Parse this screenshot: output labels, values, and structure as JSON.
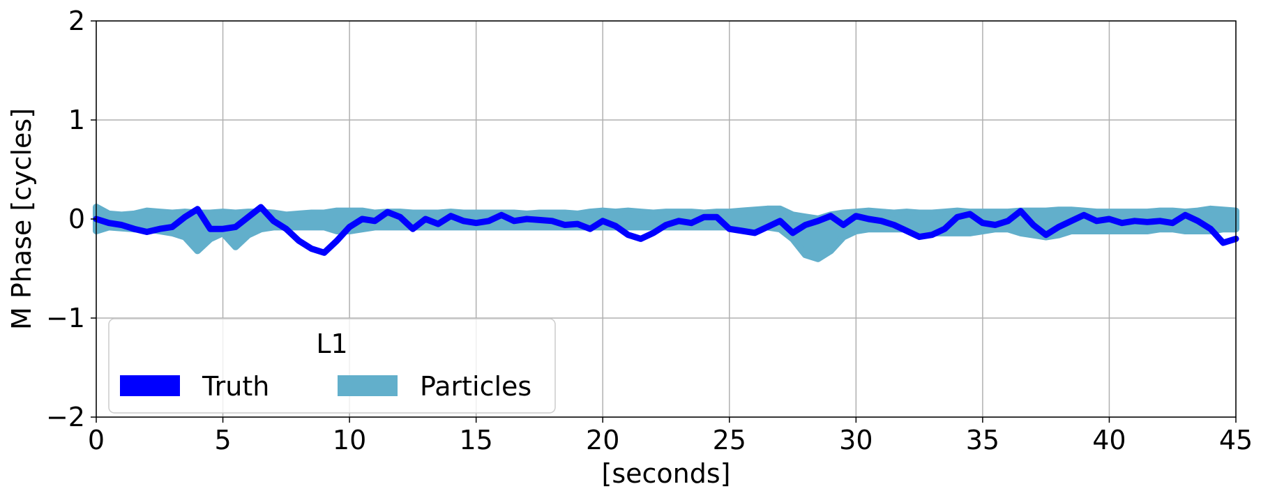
{
  "chart_data": {
    "type": "line",
    "title": "",
    "xlabel": "[seconds]",
    "ylabel": "M Phase [cycles]",
    "xlim": [
      0,
      45
    ],
    "ylim": [
      -2,
      2
    ],
    "xticks": [
      0,
      5,
      10,
      15,
      20,
      25,
      30,
      35,
      40,
      45
    ],
    "xtick_labels": [
      "0",
      "5",
      "10",
      "15",
      "20",
      "25",
      "30",
      "35",
      "40",
      "45"
    ],
    "yticks": [
      2,
      1,
      0,
      -1,
      -2
    ],
    "ytick_labels": [
      "2",
      "1",
      "0",
      "−1",
      "−2"
    ],
    "grid": true,
    "legend": {
      "title": "L1",
      "location": "lower-left",
      "entries": [
        "Truth",
        "Particles"
      ]
    },
    "colors": {
      "truth": "#0000ff",
      "particles": "#62afcb"
    },
    "series": [
      {
        "name": "Truth",
        "x": [
          0,
          0.5,
          1,
          1.5,
          2,
          2.5,
          3,
          3.5,
          4,
          4.5,
          5,
          5.5,
          6,
          6.5,
          7,
          7.5,
          8,
          8.5,
          9,
          9.5,
          10,
          10.5,
          11,
          11.5,
          12,
          12.5,
          13,
          13.5,
          14,
          14.5,
          15,
          15.5,
          16,
          16.5,
          17,
          17.5,
          18,
          18.5,
          19,
          19.5,
          20,
          20.5,
          21,
          21.5,
          22,
          22.5,
          23,
          23.5,
          24,
          24.5,
          25,
          25.5,
          26,
          26.5,
          27,
          27.5,
          28,
          28.5,
          29,
          29.5,
          30,
          30.5,
          31,
          31.5,
          32,
          32.5,
          33,
          33.5,
          34,
          34.5,
          35,
          35.5,
          36,
          36.5,
          37,
          37.5,
          38,
          38.5,
          39,
          39.5,
          40,
          40.5,
          41,
          41.5,
          42,
          42.5,
          43,
          43.5,
          44,
          44.5,
          45
        ],
        "values": [
          0.0,
          -0.04,
          -0.06,
          -0.1,
          -0.13,
          -0.1,
          -0.08,
          0.02,
          0.1,
          -0.1,
          -0.1,
          -0.08,
          0.02,
          0.12,
          -0.02,
          -0.1,
          -0.22,
          -0.3,
          -0.34,
          -0.22,
          -0.08,
          0.0,
          -0.02,
          0.07,
          0.02,
          -0.1,
          0.0,
          -0.05,
          0.03,
          -0.02,
          -0.04,
          -0.02,
          0.04,
          -0.02,
          0.0,
          -0.01,
          -0.02,
          -0.06,
          -0.05,
          -0.1,
          -0.02,
          -0.07,
          -0.16,
          -0.2,
          -0.14,
          -0.06,
          -0.02,
          -0.04,
          0.02,
          0.02,
          -0.1,
          -0.12,
          -0.14,
          -0.08,
          -0.02,
          -0.14,
          -0.06,
          -0.02,
          0.03,
          -0.06,
          0.03,
          0.0,
          -0.02,
          -0.06,
          -0.12,
          -0.18,
          -0.16,
          -0.1,
          0.02,
          0.05,
          -0.04,
          -0.06,
          -0.02,
          0.08,
          -0.06,
          -0.16,
          -0.08,
          -0.02,
          0.04,
          -0.02,
          0.0,
          -0.04,
          -0.02,
          -0.03,
          -0.02,
          -0.04,
          0.04,
          -0.02,
          -0.1,
          -0.24,
          -0.2
        ]
      },
      {
        "name": "Particles",
        "x": [
          0,
          0.5,
          1,
          1.5,
          2,
          2.5,
          3,
          3.5,
          4,
          4.5,
          5,
          5.5,
          6,
          6.5,
          7,
          7.5,
          8,
          8.5,
          9,
          9.5,
          10,
          10.5,
          11,
          11.5,
          12,
          12.5,
          13,
          13.5,
          14,
          14.5,
          15,
          15.5,
          16,
          16.5,
          17,
          17.5,
          18,
          18.5,
          19,
          19.5,
          20,
          20.5,
          21,
          21.5,
          22,
          22.5,
          23,
          23.5,
          24,
          24.5,
          25,
          25.5,
          26,
          26.5,
          27,
          27.5,
          28,
          28.5,
          29,
          29.5,
          30,
          30.5,
          31,
          31.5,
          32,
          32.5,
          33,
          33.5,
          34,
          34.5,
          35,
          35.5,
          36,
          36.5,
          37,
          37.5,
          38,
          38.5,
          39,
          39.5,
          40,
          40.5,
          41,
          41.5,
          42,
          42.5,
          43,
          43.5,
          44,
          44.5,
          45
        ],
        "upper": [
          0.12,
          0.05,
          0.04,
          0.05,
          0.08,
          0.07,
          0.06,
          0.07,
          0.06,
          0.06,
          0.07,
          0.06,
          0.07,
          0.07,
          0.06,
          0.04,
          0.05,
          0.06,
          0.06,
          0.08,
          0.08,
          0.08,
          0.06,
          0.07,
          0.07,
          0.06,
          0.06,
          0.06,
          0.07,
          0.06,
          0.06,
          0.06,
          0.06,
          0.06,
          0.05,
          0.06,
          0.06,
          0.06,
          0.05,
          0.07,
          0.08,
          0.07,
          0.08,
          0.07,
          0.06,
          0.07,
          0.07,
          0.07,
          0.06,
          0.07,
          0.07,
          0.08,
          0.09,
          0.1,
          0.1,
          0.04,
          0.02,
          0.0,
          0.04,
          0.06,
          0.07,
          0.08,
          0.07,
          0.06,
          0.07,
          0.06,
          0.06,
          0.07,
          0.08,
          0.07,
          0.07,
          0.07,
          0.07,
          0.08,
          0.08,
          0.08,
          0.09,
          0.09,
          0.08,
          0.07,
          0.07,
          0.07,
          0.07,
          0.07,
          0.08,
          0.08,
          0.07,
          0.08,
          0.1,
          0.09,
          0.08
        ],
        "lower": [
          -0.12,
          -0.08,
          -0.09,
          -0.1,
          -0.1,
          -0.12,
          -0.14,
          -0.18,
          -0.32,
          -0.2,
          -0.14,
          -0.28,
          -0.16,
          -0.1,
          -0.08,
          -0.08,
          -0.08,
          -0.08,
          -0.08,
          -0.12,
          -0.12,
          -0.1,
          -0.08,
          -0.08,
          -0.08,
          -0.08,
          -0.08,
          -0.08,
          -0.08,
          -0.08,
          -0.08,
          -0.08,
          -0.08,
          -0.08,
          -0.08,
          -0.08,
          -0.08,
          -0.08,
          -0.08,
          -0.08,
          -0.08,
          -0.08,
          -0.08,
          -0.08,
          -0.08,
          -0.08,
          -0.08,
          -0.08,
          -0.08,
          -0.08,
          -0.08,
          -0.08,
          -0.08,
          -0.08,
          -0.1,
          -0.2,
          -0.36,
          -0.4,
          -0.32,
          -0.18,
          -0.12,
          -0.1,
          -0.1,
          -0.1,
          -0.1,
          -0.12,
          -0.14,
          -0.14,
          -0.14,
          -0.14,
          -0.12,
          -0.1,
          -0.1,
          -0.14,
          -0.16,
          -0.18,
          -0.16,
          -0.12,
          -0.12,
          -0.12,
          -0.12,
          -0.12,
          -0.12,
          -0.12,
          -0.1,
          -0.1,
          -0.12,
          -0.12,
          -0.12,
          -0.1,
          -0.1
        ]
      }
    ]
  }
}
